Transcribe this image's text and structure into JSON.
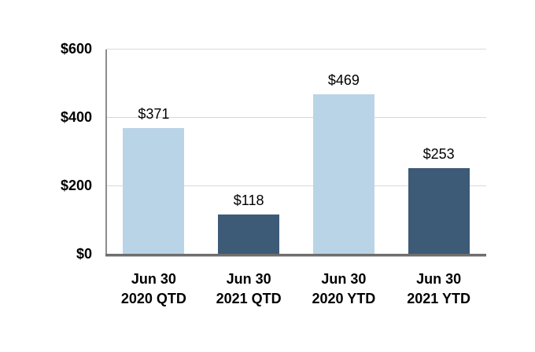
{
  "chart_data": {
    "type": "bar",
    "title": "",
    "xlabel": "",
    "ylabel": "",
    "categories": [
      "Jun 30\n2020 QTD",
      "Jun 30\n2021 QTD",
      "Jun 30\n2020 YTD",
      "Jun 30\n2021 YTD"
    ],
    "values": [
      371,
      118,
      469,
      253
    ],
    "data_labels": [
      "$371",
      "$118",
      "$469",
      "$253"
    ],
    "bar_colors": [
      "#BAD4E7",
      "#3D5A76",
      "#BAD4E7",
      "#3D5A76"
    ],
    "y_ticks": [
      {
        "value": 0,
        "label": "$0"
      },
      {
        "value": 200,
        "label": "$200"
      },
      {
        "value": 400,
        "label": "$400"
      },
      {
        "value": 600,
        "label": "$600"
      }
    ],
    "ylim": [
      0,
      600
    ],
    "grid": true,
    "legend_position": "none",
    "colors": {
      "background": "#FFFFFF",
      "gridline": "#D9D9D9",
      "y_axis_line": "#8C8C8C",
      "x_axis_line": "#6E6E6E",
      "text": "#000000",
      "light_blue": "#BAD4E7",
      "dark_blue": "#3D5A76"
    }
  }
}
